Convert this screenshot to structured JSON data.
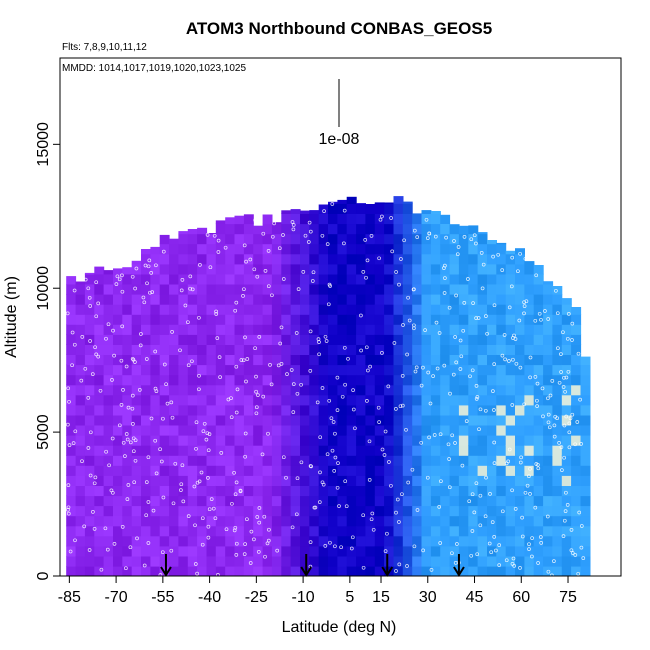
{
  "chart_data": {
    "type": "heatmap",
    "title": "ATOM3 Northbound CONBAS_GEOS5",
    "flights_note": "Flts: 7,8,9,10,11,12",
    "dates_note": "MMDD: 1014,1017,1019,1020,1023,1025",
    "xlabel": "Latitude (deg N)",
    "ylabel": "Altitude (m)",
    "xlim": [
      -88,
      92
    ],
    "ylim": [
      0,
      18000
    ],
    "x_ticks": [
      -85,
      -70,
      -55,
      -40,
      -25,
      -10,
      5,
      15,
      30,
      45,
      60,
      75
    ],
    "x_tick_labels": [
      "-85",
      "-70",
      "-55",
      "-40",
      "-25",
      "-10",
      "5",
      "15",
      "30",
      "45",
      "60",
      "75"
    ],
    "y_ticks": [
      0,
      5000,
      10000,
      15000
    ],
    "y_tick_labels": [
      "0",
      "5000",
      "10000",
      "15000"
    ],
    "scale_bar_label": "1e-08",
    "arrow_latitudes": [
      -54,
      -9,
      17,
      40
    ],
    "colors": {
      "south": "#8c28f0",
      "tropics": "#1000c8",
      "north": "#30a0ff",
      "high": "#f4f4d8"
    }
  }
}
